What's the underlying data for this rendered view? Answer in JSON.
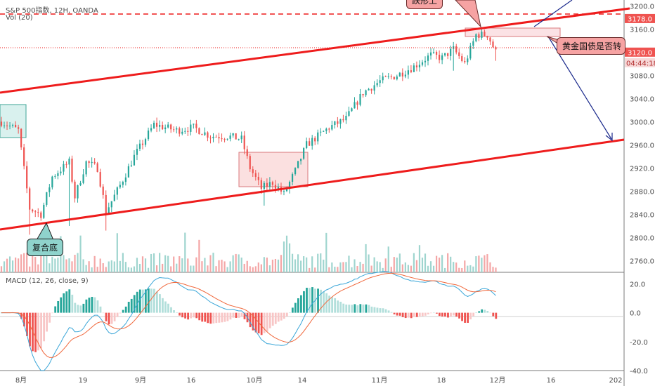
{
  "header": {
    "symbol_line": "S&P 500指数, 12H, OANDA",
    "volume_line": "Vol (20)",
    "macd_line": "MACD (12, 26, close, 9)"
  },
  "annotations": {
    "top_callout": "跌形上",
    "right_callout": "黄金国债是否转",
    "bottom_callout": "复合底"
  },
  "colors": {
    "up": "#26a69a",
    "down": "#ef5350",
    "vol_up": "#9fd5cf",
    "vol_down": "#f4a6a6",
    "trendline": "#ee1c1c",
    "arrow": "#1b2a8c",
    "macd_line": "#3aa6d8",
    "signal_line": "#f0683c",
    "axis_text": "#4a4a4a",
    "price_label_bg": "#ef5350",
    "timer_label_bg": "#f7d7d7"
  },
  "price_axis": {
    "ticks": [
      "3200.0",
      "3160.0",
      "3120.0",
      "3080.0",
      "3040.0",
      "3000.0",
      "2960.0",
      "2920.0",
      "2880.0",
      "2840.0",
      "2800.0",
      "2760.0"
    ],
    "range": [
      2740,
      3210
    ],
    "level_label": "3178.0",
    "current_label": "3120.0",
    "timer_label": "04:44:18"
  },
  "macd_axis": {
    "ticks": [
      "20.0",
      "0.0",
      "-20.0",
      "-40.0"
    ],
    "range": [
      -40,
      27
    ]
  },
  "time_axis": {
    "labels": [
      "8月",
      "19",
      "9月",
      "16",
      "10月",
      "14",
      "11月",
      "18",
      "12月",
      "16",
      "202"
    ]
  },
  "chart_data": {
    "type": "candlestick",
    "title": "S&P 500指数, 12H, OANDA",
    "bars": 176,
    "key_closes": [
      {
        "x": "8月",
        "y": 3000
      },
      {
        "x": "8月 low",
        "y": 2825
      },
      {
        "x": "19",
        "y": 2925
      },
      {
        "x": "9月",
        "y": 2900
      },
      {
        "x": "16",
        "y": 3000
      },
      {
        "x": "10月",
        "y": 2875
      },
      {
        "x": "14",
        "y": 2960
      },
      {
        "x": "11月",
        "y": 3070
      },
      {
        "x": "18",
        "y": 3120
      },
      {
        "x": "12月",
        "y": 3120
      }
    ],
    "horizontal_levels": [
      3178,
      3120
    ],
    "channel": {
      "upper": [
        {
          "x": "8月",
          "y": 3045
        },
        {
          "x": "202",
          "y": 3200
        }
      ],
      "lower": [
        {
          "x": "8月",
          "y": 2805
        },
        {
          "x": "202",
          "y": 2960
        }
      ]
    },
    "macd": {
      "fast": 12,
      "slow": 26,
      "source": "close",
      "signal": 9
    }
  }
}
